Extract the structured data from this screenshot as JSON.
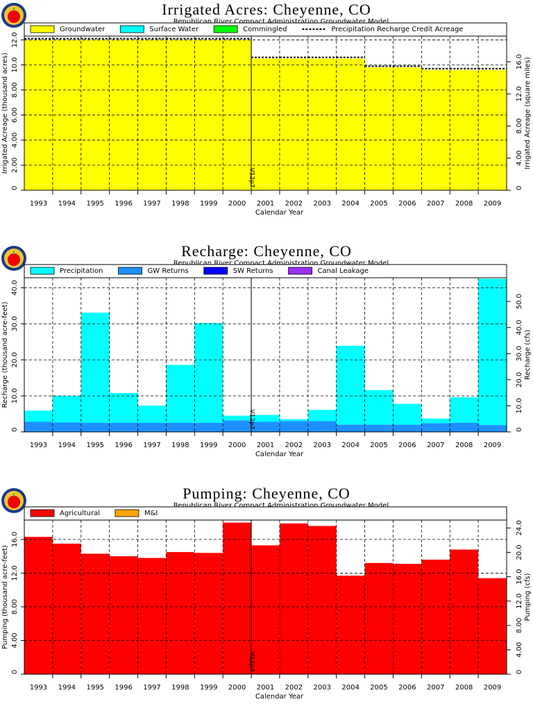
{
  "chart_data": [
    {
      "type": "bar",
      "title": "Irrigated Acres: Cheyenne, CO",
      "subtitle": "Republican River Compact Administration Groundwater Model",
      "xlabel": "Calendar Year",
      "ylabel": "Irrigated Acreage (thousand acres)",
      "y2label": "Irrigated Acreage (square miles)",
      "annotation": "V12p7",
      "categories": [
        "1993",
        "1994",
        "1995",
        "1996",
        "1997",
        "1998",
        "1999",
        "2000",
        "2001",
        "2002",
        "2003",
        "2004",
        "2005",
        "2006",
        "2007",
        "2008",
        "2009"
      ],
      "series": [
        {
          "name": "Groundwater",
          "color": "#ffff00",
          "values": [
            12.0,
            12.0,
            12.0,
            12.0,
            12.0,
            12.0,
            12.0,
            12.0,
            10.5,
            10.5,
            10.5,
            10.5,
            9.8,
            9.8,
            9.6,
            9.6,
            9.6
          ]
        },
        {
          "name": "Surface Water",
          "color": "#00ffff",
          "values": [
            0,
            0,
            0,
            0,
            0,
            0,
            0,
            0,
            0,
            0,
            0,
            0,
            0,
            0,
            0,
            0,
            0
          ]
        },
        {
          "name": "Commingled",
          "color": "#00ff00",
          "values": [
            0,
            0,
            0,
            0,
            0,
            0,
            0,
            0,
            0,
            0,
            0,
            0,
            0,
            0,
            0,
            0,
            0
          ]
        },
        {
          "name": "Precipitation Recharge Credit Acreage",
          "type": "line",
          "color": "#000000",
          "values": [
            12.1,
            12.1,
            12.1,
            12.1,
            12.1,
            12.1,
            12.1,
            12.1,
            10.6,
            10.6,
            10.6,
            10.6,
            9.9,
            9.9,
            9.7,
            9.7,
            9.7
          ]
        }
      ],
      "ylim": [
        0,
        12.3
      ],
      "yticks": [
        0,
        {
          "value": 2,
          "label": "2.00"
        },
        {
          "value": 4,
          "label": "4.00"
        },
        {
          "value": 6,
          "label": "6.00"
        },
        {
          "value": 8,
          "label": "8.00"
        },
        {
          "value": 10,
          "label": "10.0"
        },
        {
          "value": 12,
          "label": "12.0"
        }
      ],
      "y2lim": [
        0,
        19.2
      ],
      "y2ticks": [
        0,
        {
          "value": 4,
          "label": "4.00"
        },
        {
          "value": 8,
          "label": "8.00"
        },
        {
          "value": 12,
          "label": "12.0"
        },
        {
          "value": 16,
          "label": "16.0"
        }
      ],
      "grid": true
    },
    {
      "type": "bar",
      "title": "Recharge: Cheyenne, CO",
      "subtitle": "Republican River Compact Administration Groundwater Model",
      "xlabel": "Calendar Year",
      "ylabel": "Recharge (thousand acre-feet)",
      "y2label": "Recharge (cfs)",
      "annotation": "V12p7",
      "categories": [
        "1993",
        "1994",
        "1995",
        "1996",
        "1997",
        "1998",
        "1999",
        "2000",
        "2001",
        "2002",
        "2003",
        "2004",
        "2005",
        "2006",
        "2007",
        "2008",
        "2009"
      ],
      "series": [
        {
          "name": "Precipitation",
          "color": "#00ffff",
          "values": [
            3.1,
            7.4,
            30.6,
            8.3,
            4.8,
            16.1,
            27.7,
            1.3,
            1.9,
            0.5,
            3.1,
            21.9,
            9.6,
            5.8,
            1.3,
            7.1,
            40.6
          ]
        },
        {
          "name": "GW Returns",
          "color": "#1e90ff",
          "values": [
            2.8,
            2.6,
            2.5,
            2.5,
            2.5,
            2.5,
            2.5,
            3.2,
            2.8,
            3.0,
            3.0,
            2.0,
            2.0,
            2.0,
            2.4,
            2.5,
            1.9
          ]
        },
        {
          "name": "SW Returns",
          "color": "#0000ff",
          "values": [
            0,
            0,
            0,
            0,
            0,
            0,
            0,
            0,
            0,
            0,
            0,
            0,
            0,
            0,
            0,
            0,
            0
          ]
        },
        {
          "name": "Canal Leakage",
          "color": "#9b30ff",
          "values": [
            0,
            0,
            0,
            0,
            0,
            0,
            0,
            0,
            0,
            0,
            0,
            0,
            0,
            0,
            0,
            0,
            0
          ]
        }
      ],
      "ylim": [
        0,
        42.8
      ],
      "yticks": [
        0,
        {
          "value": 10,
          "label": "10.0"
        },
        {
          "value": 20,
          "label": "20.0"
        },
        {
          "value": 30,
          "label": "30.0"
        },
        {
          "value": 40,
          "label": "40.0"
        }
      ],
      "y2lim": [
        0,
        59.1
      ],
      "y2ticks": [
        0,
        {
          "value": 10,
          "label": "10.0"
        },
        {
          "value": 20,
          "label": "20.0"
        },
        {
          "value": 30,
          "label": "30.0"
        },
        {
          "value": 40,
          "label": "40.0"
        },
        {
          "value": 50,
          "label": "50.0"
        }
      ],
      "grid": true
    },
    {
      "type": "bar",
      "title": "Pumping: Cheyenne, CO",
      "subtitle": "Republican River Compact Administration Groundwater Model",
      "xlabel": "Calendar Year",
      "ylabel": "Pumping (thousand acre-feet)",
      "y2label": "Pumping (cfs)",
      "annotation": "V12p7",
      "categories": [
        "1993",
        "1994",
        "1995",
        "1996",
        "1997",
        "1998",
        "1999",
        "2000",
        "2001",
        "2002",
        "2003",
        "2004",
        "2005",
        "2006",
        "2007",
        "2008",
        "2009"
      ],
      "series": [
        {
          "name": "Agricultural",
          "color": "#ff0000",
          "values": [
            16.3,
            15.5,
            14.3,
            14.0,
            13.8,
            14.5,
            14.4,
            18.0,
            15.3,
            17.9,
            17.6,
            11.7,
            13.2,
            13.1,
            13.6,
            14.8,
            11.4
          ]
        },
        {
          "name": "M&I",
          "color": "#ffa500",
          "values": [
            0,
            0,
            0,
            0,
            0,
            0,
            0,
            0,
            0,
            0,
            0,
            0,
            0,
            0,
            0,
            0,
            0
          ]
        }
      ],
      "ylim": [
        0,
        18.3
      ],
      "yticks": [
        0,
        {
          "value": 4,
          "label": "4.00"
        },
        {
          "value": 8,
          "label": "8.00"
        },
        {
          "value": 12,
          "label": "12.0"
        },
        {
          "value": 16,
          "label": "16.0"
        }
      ],
      "y2lim": [
        0,
        25.3
      ],
      "y2ticks": [
        0,
        {
          "value": 4,
          "label": "4.00"
        },
        {
          "value": 8,
          "label": "8.00"
        },
        {
          "value": 12,
          "label": "12.0"
        },
        {
          "value": 16,
          "label": "16.0"
        },
        {
          "value": 20,
          "label": "20.0"
        },
        {
          "value": 24,
          "label": "24.0"
        }
      ],
      "grid": true
    }
  ]
}
